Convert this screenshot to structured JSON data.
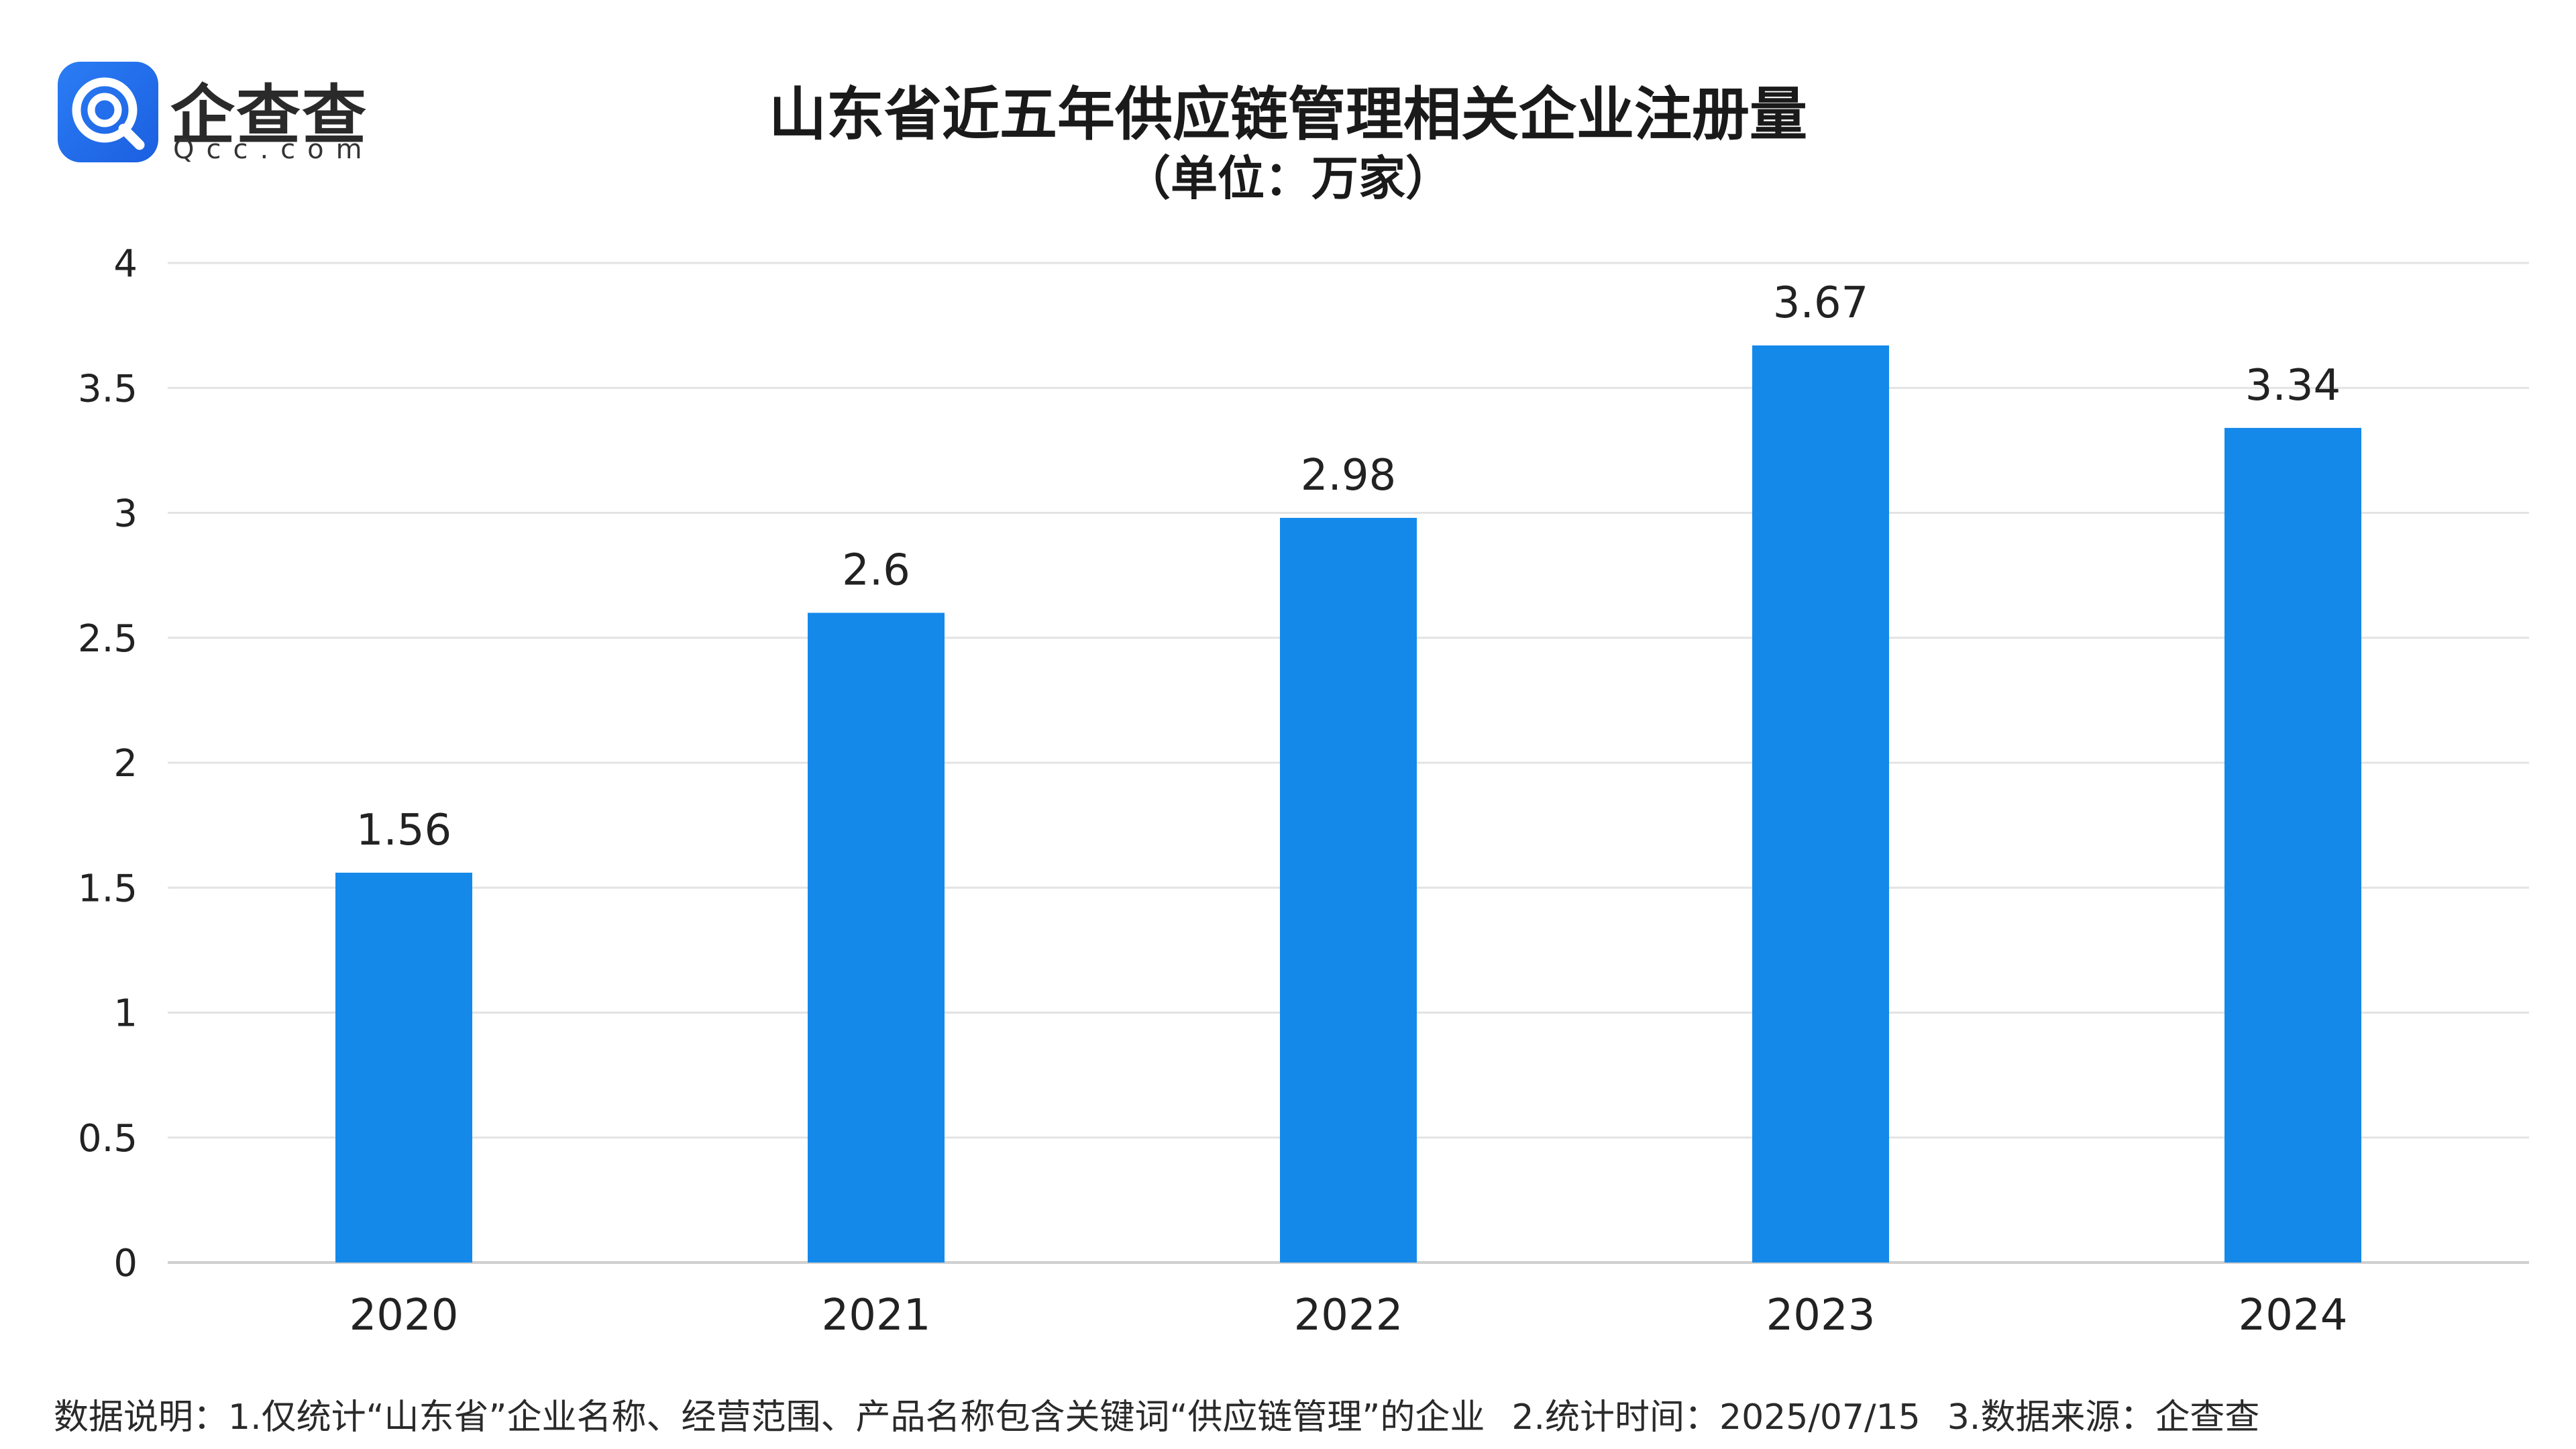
{
  "brand": {
    "name": "企查查",
    "domain": "Qcc.com",
    "icon": "qcc-magnifier-logo-icon"
  },
  "title": "山东省近五年供应链管理相关企业注册量",
  "subtitle": "（单位：万家）",
  "colors": {
    "bar": "#1589ea",
    "grid": "#e3e3e3",
    "axis": "#cfcfcf",
    "text": "#222222"
  },
  "chart_data": {
    "type": "bar",
    "categories": [
      "2020",
      "2021",
      "2022",
      "2023",
      "2024"
    ],
    "values": [
      1.56,
      2.6,
      2.98,
      3.67,
      3.34
    ],
    "value_labels": [
      "1.56",
      "2.6",
      "2.98",
      "3.67",
      "3.34"
    ],
    "ylim": [
      0,
      4
    ],
    "yticks": [
      0,
      0.5,
      1,
      1.5,
      2,
      2.5,
      3,
      3.5,
      4
    ],
    "ytick_labels": [
      "0",
      "0.5",
      "1",
      "1.5",
      "2",
      "2.5",
      "3",
      "3.5",
      "4"
    ],
    "grid": true,
    "legend": "none"
  },
  "footnote": {
    "note1": "数据说明：1.仅统计“山东省”企业名称、经营范围、产品名称包含关键词“供应链管理”的企业",
    "note2": "2.统计时间：2025/07/15",
    "note3": "3.数据来源：企查查"
  }
}
